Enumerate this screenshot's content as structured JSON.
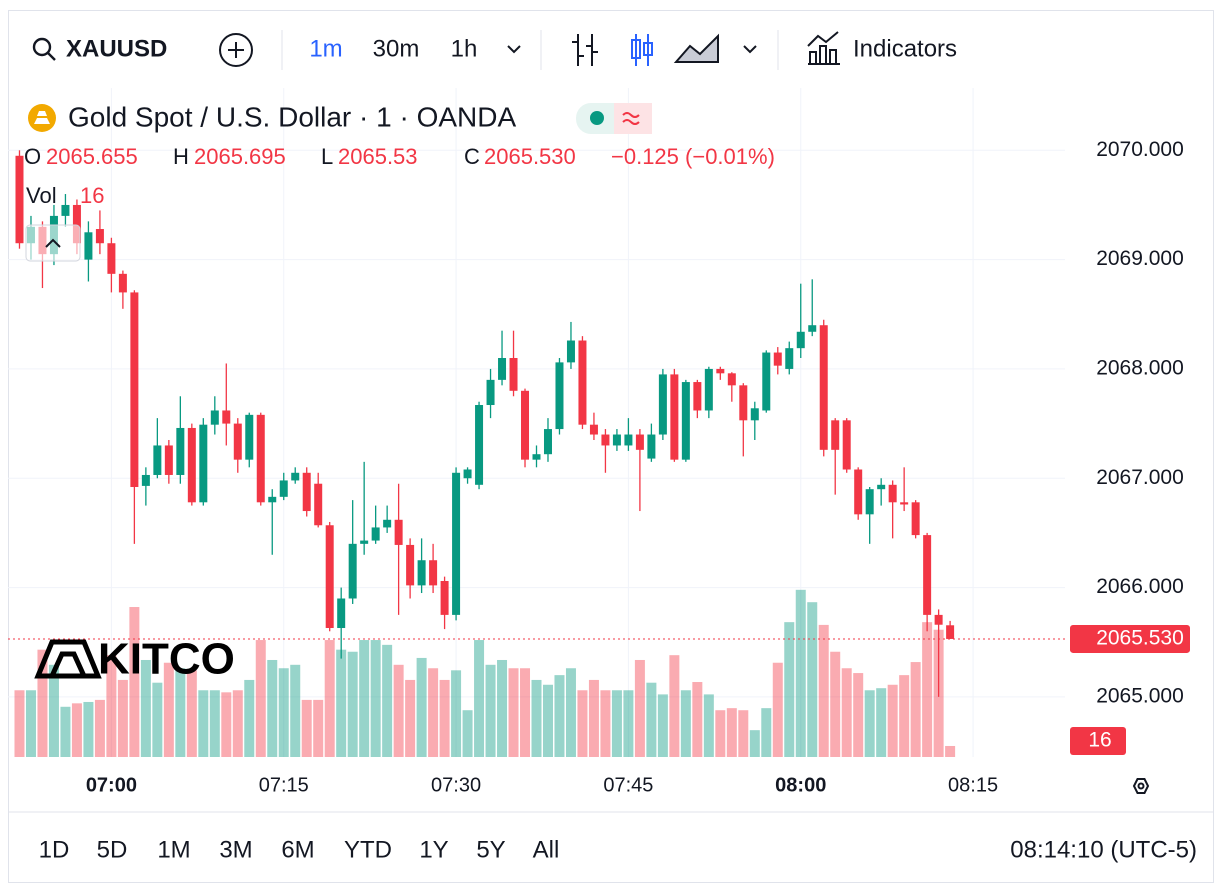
{
  "toolbar": {
    "symbol": "XAUUSD",
    "intervals": [
      "1m",
      "30m",
      "1h"
    ],
    "indicators": "Indicators"
  },
  "chart_data": {
    "type": "candlestick",
    "title": "Gold Spot / U.S. Dollar · 1 · OANDA",
    "legend_labels": [
      "O",
      "H",
      "L",
      "C"
    ],
    "change": "−0.125 (−0.01%)",
    "volume_label": "Vol",
    "x": [
      "06:52",
      "06:53",
      "06:54",
      "06:55",
      "06:56",
      "06:57",
      "06:58",
      "06:59",
      "07:00",
      "07:01",
      "07:02",
      "07:03",
      "07:04",
      "07:05",
      "07:06",
      "07:07",
      "07:08",
      "07:09",
      "07:10",
      "07:11",
      "07:12",
      "07:13",
      "07:14",
      "07:15",
      "07:16",
      "07:17",
      "07:18",
      "07:19",
      "07:20",
      "07:21",
      "07:22",
      "07:23",
      "07:24",
      "07:25",
      "07:26",
      "07:27",
      "07:28",
      "07:29",
      "07:30",
      "07:31",
      "07:32",
      "07:33",
      "07:34",
      "07:35",
      "07:36",
      "07:37",
      "07:38",
      "07:39",
      "07:40",
      "07:41",
      "07:42",
      "07:43",
      "07:44",
      "07:45",
      "07:46",
      "07:47",
      "07:48",
      "07:49",
      "07:50",
      "07:51",
      "07:52",
      "07:53",
      "07:54",
      "07:55",
      "07:56",
      "07:57",
      "07:58",
      "07:59",
      "08:00",
      "08:01",
      "08:02",
      "08:03",
      "08:04",
      "08:05",
      "08:06",
      "08:07",
      "08:08",
      "08:09",
      "08:10",
      "08:11",
      "08:12",
      "08:13"
    ],
    "open": [
      2069.95,
      2069.15,
      2069.3,
      2069.05,
      2069.4,
      2069.5,
      2069.0,
      2069.28,
      2069.15,
      2068.87,
      2068.7,
      2066.93,
      2067.03,
      2067.3,
      2067.03,
      2067.46,
      2066.78,
      2067.49,
      2067.62,
      2067.5,
      2067.17,
      2067.58,
      2066.78,
      2066.83,
      2066.98,
      2067.05,
      2066.95,
      2066.57,
      2065.63,
      2065.9,
      2066.4,
      2066.43,
      2066.55,
      2066.62,
      2066.39,
      2066.02,
      2066.25,
      2066.06,
      2065.75,
      2067.0,
      2066.94,
      2067.67,
      2067.9,
      2068.1,
      2067.8,
      2067.17,
      2067.22,
      2067.45,
      2068.06,
      2068.26,
      2067.49,
      2067.4,
      2067.3,
      2067.3,
      2067.4,
      2067.18,
      2067.4,
      2067.95,
      2067.17,
      2067.88,
      2067.62,
      2068.0,
      2067.96,
      2067.85,
      2067.53,
      2067.62,
      2068.15,
      2068.0,
      2068.19,
      2068.34,
      2068.4,
      2067.53,
      2067.53,
      2067.08,
      2066.67,
      2066.9,
      2066.94,
      2066.78,
      2066.78,
      2066.48,
      2065.75,
      2065.655
    ],
    "high": [
      2070.0,
      2069.4,
      2069.35,
      2069.5,
      2069.6,
      2069.55,
      2069.35,
      2069.45,
      2069.2,
      2068.9,
      2068.72,
      2067.1,
      2067.55,
      2067.35,
      2067.75,
      2067.5,
      2067.55,
      2067.75,
      2068.05,
      2067.55,
      2067.6,
      2067.6,
      2066.9,
      2067.05,
      2067.1,
      2067.1,
      2067.05,
      2066.6,
      2066.0,
      2066.8,
      2067.15,
      2066.75,
      2066.75,
      2066.95,
      2066.45,
      2066.45,
      2066.4,
      2066.1,
      2067.1,
      2067.1,
      2067.7,
      2068.0,
      2068.35,
      2068.35,
      2067.82,
      2067.3,
      2067.55,
      2068.1,
      2068.43,
      2068.3,
      2067.6,
      2067.45,
      2067.45,
      2067.55,
      2067.45,
      2067.5,
      2068.0,
      2068.0,
      2067.9,
      2067.9,
      2068.02,
      2068.02,
      2067.97,
      2067.87,
      2067.7,
      2068.17,
      2068.2,
      2068.25,
      2068.78,
      2068.82,
      2068.45,
      2067.55,
      2067.55,
      2067.1,
      2066.92,
      2067.0,
      2066.98,
      2067.1,
      2066.8,
      2066.5,
      2065.8,
      2065.695
    ],
    "low": [
      2069.1,
      2069.0,
      2068.74,
      2068.95,
      2069.3,
      2069.05,
      2068.8,
      2069.05,
      2068.7,
      2068.55,
      2066.4,
      2066.75,
      2067.0,
      2066.95,
      2066.95,
      2066.75,
      2066.75,
      2067.4,
      2067.3,
      2067.05,
      2067.1,
      2066.75,
      2066.3,
      2066.8,
      2066.95,
      2066.65,
      2066.55,
      2065.6,
      2065.35,
      2065.85,
      2066.3,
      2066.4,
      2066.5,
      2065.75,
      2065.9,
      2065.95,
      2065.95,
      2065.62,
      2065.7,
      2066.95,
      2066.9,
      2067.55,
      2067.85,
      2067.75,
      2067.1,
      2067.1,
      2067.15,
      2067.4,
      2068.0,
      2067.45,
      2067.35,
      2067.05,
      2067.25,
      2067.25,
      2066.7,
      2067.15,
      2067.35,
      2067.15,
      2067.15,
      2067.55,
      2067.55,
      2067.9,
      2067.7,
      2067.2,
      2067.35,
      2067.6,
      2067.95,
      2067.95,
      2068.1,
      2068.3,
      2067.2,
      2066.85,
      2067.05,
      2066.62,
      2066.4,
      2066.75,
      2066.45,
      2066.7,
      2066.45,
      2065.6,
      2065.0,
      2065.53
    ],
    "close": [
      2069.15,
      2069.3,
      2069.05,
      2069.4,
      2069.5,
      2069.15,
      2069.25,
      2069.15,
      2068.87,
      2068.7,
      2066.92,
      2067.03,
      2067.3,
      2067.03,
      2067.46,
      2066.78,
      2067.49,
      2067.62,
      2067.5,
      2067.17,
      2067.58,
      2066.78,
      2066.83,
      2066.98,
      2067.05,
      2066.7,
      2066.57,
      2065.63,
      2065.9,
      2066.4,
      2066.43,
      2066.55,
      2066.62,
      2066.39,
      2066.02,
      2066.25,
      2066.02,
      2065.75,
      2067.05,
      2067.08,
      2067.67,
      2067.9,
      2068.1,
      2067.8,
      2067.17,
      2067.22,
      2067.45,
      2068.06,
      2068.26,
      2067.49,
      2067.4,
      2067.3,
      2067.4,
      2067.4,
      2067.26,
      2067.4,
      2067.95,
      2067.17,
      2067.88,
      2067.62,
      2068.0,
      2067.96,
      2067.85,
      2067.53,
      2067.64,
      2068.15,
      2068.03,
      2068.19,
      2068.34,
      2068.4,
      2067.26,
      2067.26,
      2067.08,
      2066.67,
      2066.9,
      2066.94,
      2066.78,
      2066.76,
      2066.48,
      2065.75,
      2065.66,
      2065.53
    ],
    "volume": [
      97,
      97,
      156,
      134,
      73,
      78,
      80,
      83,
      148,
      112,
      218,
      141,
      108,
      137,
      129,
      126,
      97,
      97,
      94,
      97,
      112,
      170,
      141,
      129,
      134,
      83,
      83,
      170,
      156,
      153,
      170,
      170,
      163,
      134,
      112,
      144,
      129,
      112,
      126,
      68,
      170,
      134,
      141,
      129,
      129,
      112,
      105,
      119,
      129,
      97,
      112,
      97,
      97,
      97,
      141,
      108,
      91,
      148,
      97,
      109,
      91,
      68,
      71,
      68,
      39,
      71,
      137,
      196,
      243,
      225,
      192,
      153,
      129,
      122,
      97,
      100,
      105,
      119,
      138,
      196,
      185,
      16
    ],
    "up_color": "#089981",
    "down_color": "#f23645",
    "ylim": [
      2064.45,
      2070.57
    ],
    "yticks": [
      {
        "value": 2065,
        "label": "2065.000"
      },
      {
        "value": 2066,
        "label": "2066.000"
      },
      {
        "value": 2067,
        "label": "2067.000"
      },
      {
        "value": 2068,
        "label": "2068.000"
      },
      {
        "value": 2069,
        "label": "2069.000"
      },
      {
        "value": 2070,
        "label": "2070.000"
      }
    ],
    "xlim": [
      "06:51",
      "08:23"
    ],
    "xticks": [
      "07:00",
      "07:15",
      "07:30",
      "07:45",
      "08:00",
      "08:15"
    ],
    "xticks_bold": [
      true,
      false,
      false,
      false,
      true,
      false
    ],
    "volume_ylim": [
      0,
      250
    ],
    "price_label": {
      "value": 2065.53,
      "label": "2065.530"
    },
    "grid": true
  },
  "watermark": "KITCO",
  "footer": {
    "ranges": [
      "1D",
      "5D",
      "1M",
      "3M",
      "6M",
      "YTD",
      "1Y",
      "5Y",
      "All"
    ],
    "clock": "08:14:10 (UTC-5)"
  }
}
